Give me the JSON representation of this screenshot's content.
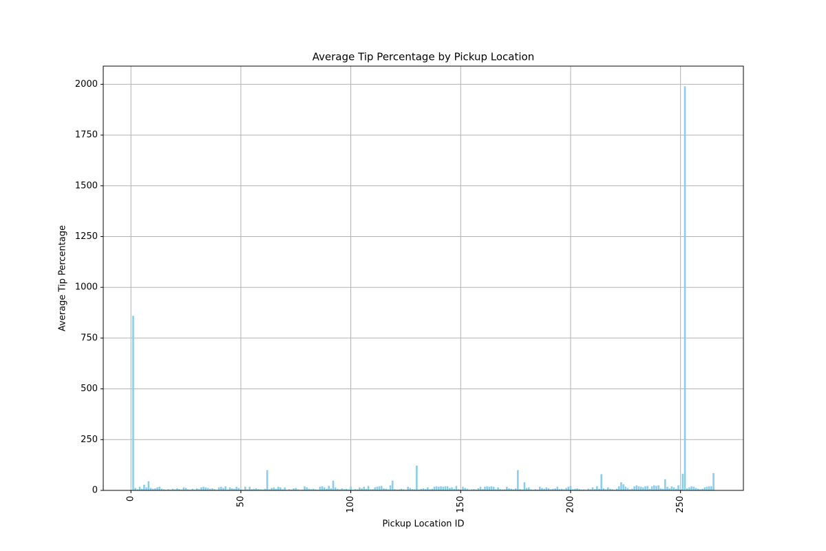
{
  "chart_data": {
    "type": "bar",
    "title": "Average Tip Percentage by Pickup Location",
    "xlabel": "Pickup Location ID",
    "ylabel": "Average Tip Percentage",
    "color": "#87ceeb",
    "bar_width": 0.8,
    "grid": true,
    "xlim": [
      -12.6,
      278.6
    ],
    "xticks": [
      0,
      50,
      100,
      150,
      200,
      250
    ],
    "ylim": [
      0,
      2089.5
    ],
    "yticks": [
      0,
      250,
      500,
      750,
      1000,
      1250,
      1500,
      1750,
      2000
    ],
    "x": [
      1,
      2,
      3,
      4,
      5,
      6,
      7,
      8,
      9,
      10,
      11,
      12,
      13,
      14,
      15,
      16,
      17,
      18,
      19,
      20,
      21,
      22,
      23,
      24,
      25,
      26,
      27,
      28,
      29,
      30,
      31,
      32,
      33,
      34,
      35,
      36,
      37,
      38,
      39,
      40,
      41,
      42,
      43,
      44,
      45,
      46,
      47,
      48,
      49,
      50,
      51,
      52,
      53,
      54,
      55,
      56,
      57,
      58,
      59,
      60,
      61,
      62,
      63,
      64,
      65,
      66,
      67,
      68,
      69,
      70,
      71,
      72,
      73,
      74,
      75,
      76,
      77,
      78,
      79,
      80,
      81,
      82,
      83,
      84,
      85,
      86,
      87,
      88,
      89,
      90,
      91,
      92,
      93,
      94,
      95,
      96,
      97,
      98,
      99,
      100,
      101,
      102,
      103,
      104,
      105,
      106,
      107,
      108,
      109,
      110,
      111,
      112,
      113,
      114,
      115,
      116,
      117,
      118,
      119,
      120,
      121,
      122,
      123,
      124,
      125,
      126,
      127,
      128,
      129,
      130,
      131,
      132,
      133,
      134,
      135,
      136,
      137,
      138,
      139,
      140,
      141,
      142,
      143,
      144,
      145,
      146,
      147,
      148,
      149,
      150,
      151,
      152,
      153,
      154,
      155,
      156,
      157,
      158,
      159,
      160,
      161,
      162,
      163,
      164,
      165,
      166,
      167,
      168,
      169,
      170,
      171,
      172,
      173,
      174,
      175,
      176,
      177,
      178,
      179,
      180,
      181,
      182,
      183,
      184,
      185,
      186,
      187,
      188,
      189,
      190,
      191,
      192,
      193,
      194,
      195,
      196,
      197,
      198,
      199,
      200,
      201,
      202,
      203,
      204,
      205,
      206,
      207,
      208,
      209,
      210,
      211,
      212,
      213,
      214,
      215,
      216,
      217,
      218,
      219,
      220,
      221,
      222,
      223,
      224,
      225,
      226,
      227,
      228,
      229,
      230,
      231,
      232,
      233,
      234,
      235,
      236,
      237,
      238,
      239,
      240,
      241,
      242,
      243,
      244,
      245,
      246,
      247,
      248,
      249,
      250,
      251,
      252,
      253,
      254,
      255,
      256,
      257,
      258,
      259,
      260,
      261,
      262,
      263,
      264,
      265
    ],
    "values": [
      860,
      12,
      5,
      18,
      8,
      28,
      15,
      45,
      12,
      8,
      10,
      15,
      18,
      8,
      5,
      3,
      6,
      4,
      8,
      5,
      10,
      6,
      4,
      15,
      12,
      5,
      3,
      8,
      4,
      10,
      6,
      15,
      18,
      15,
      12,
      8,
      10,
      6,
      3,
      15,
      18,
      12,
      20,
      4,
      15,
      10,
      8,
      18,
      12,
      5,
      3,
      18,
      5,
      18,
      6,
      8,
      10,
      6,
      5,
      4,
      8,
      100,
      5,
      12,
      15,
      8,
      18,
      15,
      5,
      15,
      3,
      6,
      4,
      10,
      12,
      5,
      3,
      4,
      20,
      15,
      8,
      6,
      8,
      5,
      3,
      18,
      20,
      15,
      8,
      22,
      10,
      48,
      15,
      8,
      5,
      10,
      6,
      8,
      4,
      18,
      3,
      6,
      5,
      15,
      10,
      18,
      8,
      22,
      5,
      6,
      15,
      18,
      20,
      22,
      10,
      8,
      5,
      25,
      48,
      6,
      4,
      5,
      8,
      5,
      3,
      18,
      12,
      6,
      5,
      122,
      4,
      8,
      10,
      6,
      15,
      5,
      8,
      18,
      20,
      18,
      20,
      18,
      20,
      20,
      12,
      15,
      8,
      22,
      6,
      4,
      18,
      12,
      8,
      3,
      5,
      6,
      4,
      10,
      18,
      6,
      18,
      20,
      18,
      20,
      18,
      5,
      15,
      6,
      4,
      5,
      18,
      10,
      8,
      5,
      10,
      100,
      6,
      4,
      40,
      12,
      15,
      5,
      3,
      6,
      4,
      18,
      12,
      8,
      15,
      10,
      5,
      8,
      10,
      18,
      6,
      8,
      5,
      12,
      18,
      22,
      5,
      8,
      10,
      6,
      4,
      5,
      3,
      8,
      5,
      15,
      6,
      20,
      8,
      80,
      10,
      5,
      15,
      8,
      5,
      3,
      8,
      20,
      40,
      30,
      18,
      12,
      5,
      8,
      20,
      25,
      20,
      18,
      15,
      20,
      22,
      8,
      20,
      25,
      22,
      25,
      10,
      8,
      55,
      18,
      10,
      20,
      15,
      8,
      25,
      5,
      82,
      1990,
      10,
      15,
      20,
      18,
      12,
      8,
      5,
      8,
      15,
      18,
      20,
      20,
      85
    ]
  }
}
